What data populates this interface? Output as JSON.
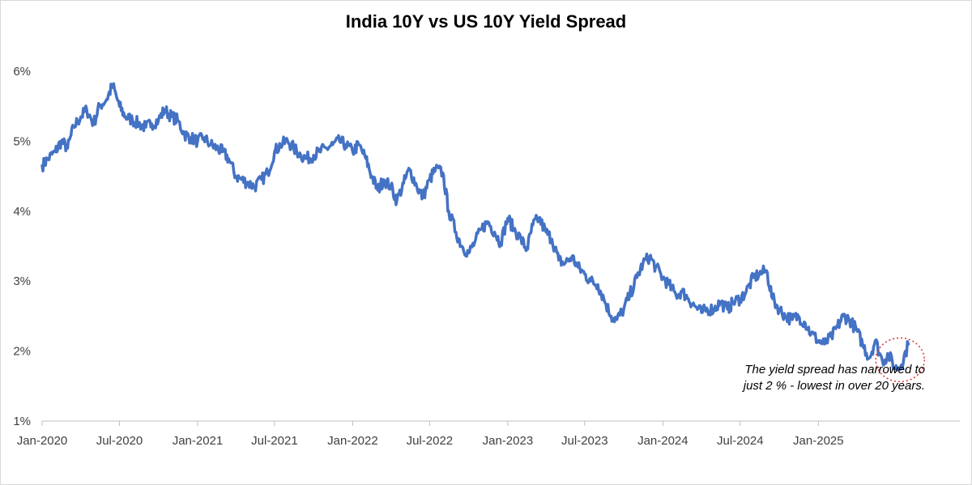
{
  "chart_data": {
    "type": "line",
    "title": "India 10Y vs US 10Y Yield Spread",
    "xlabel": "",
    "ylabel": "",
    "ylim": [
      1,
      6
    ],
    "xlim": [
      "2020-01-01",
      "2025-11-30"
    ],
    "y_ticks": [
      "1%",
      "2%",
      "3%",
      "4%",
      "5%",
      "6%"
    ],
    "x_ticks": [
      {
        "date": "2020-01-01",
        "label": "Jan-2020"
      },
      {
        "date": "2020-07-01",
        "label": "Jul-2020"
      },
      {
        "date": "2021-01-01",
        "label": "Jan-2021"
      },
      {
        "date": "2021-07-01",
        "label": "Jul-2021"
      },
      {
        "date": "2022-01-01",
        "label": "Jan-2022"
      },
      {
        "date": "2022-07-01",
        "label": "Jul-2022"
      },
      {
        "date": "2023-01-01",
        "label": "Jan-2023"
      },
      {
        "date": "2023-07-01",
        "label": "Jul-2023"
      },
      {
        "date": "2024-01-01",
        "label": "Jan-2024"
      },
      {
        "date": "2024-07-01",
        "label": "Jul-2024"
      },
      {
        "date": "2025-01-01",
        "label": "Jan-2025"
      }
    ],
    "grid": false,
    "legend": "none",
    "line_color": "#4472c4",
    "series": [
      {
        "x": [
          "2020-01-01",
          "2020-01-15",
          "2020-02-01",
          "2020-02-15",
          "2020-03-01",
          "2020-03-15",
          "2020-04-01",
          "2020-04-15",
          "2020-05-01",
          "2020-05-15",
          "2020-06-01",
          "2020-06-15",
          "2020-07-01",
          "2020-07-15",
          "2020-08-01",
          "2020-08-15",
          "2020-09-01",
          "2020-09-15",
          "2020-10-01",
          "2020-10-15",
          "2020-11-01",
          "2020-11-15",
          "2020-12-01",
          "2020-12-15",
          "2021-01-01",
          "2021-01-15",
          "2021-02-01",
          "2021-02-15",
          "2021-03-01",
          "2021-03-15",
          "2021-04-01",
          "2021-04-15",
          "2021-05-01",
          "2021-05-15",
          "2021-06-01",
          "2021-06-15",
          "2021-07-01",
          "2021-07-15",
          "2021-08-01",
          "2021-08-15",
          "2021-09-01",
          "2021-09-15",
          "2021-10-01",
          "2021-10-15",
          "2021-11-01",
          "2021-11-15",
          "2021-12-01",
          "2021-12-15",
          "2022-01-01",
          "2022-01-15",
          "2022-02-01",
          "2022-02-15",
          "2022-03-01",
          "2022-03-15",
          "2022-04-01",
          "2022-04-15",
          "2022-05-01",
          "2022-05-15",
          "2022-06-01",
          "2022-06-15",
          "2022-07-01",
          "2022-07-15",
          "2022-08-01",
          "2022-08-15",
          "2022-09-01",
          "2022-09-15",
          "2022-10-01",
          "2022-10-15",
          "2022-11-01",
          "2022-11-15",
          "2022-12-01",
          "2022-12-15",
          "2023-01-01",
          "2023-01-15",
          "2023-02-01",
          "2023-02-15",
          "2023-03-01",
          "2023-03-15",
          "2023-04-01",
          "2023-04-15",
          "2023-05-01",
          "2023-05-15",
          "2023-06-01",
          "2023-06-15",
          "2023-07-01",
          "2023-07-15",
          "2023-08-01",
          "2023-08-15",
          "2023-09-01",
          "2023-09-15",
          "2023-10-01",
          "2023-10-15",
          "2023-11-01",
          "2023-11-15",
          "2023-12-01",
          "2023-12-15",
          "2024-01-01",
          "2024-01-15",
          "2024-02-01",
          "2024-02-15",
          "2024-03-01",
          "2024-03-15",
          "2024-04-01",
          "2024-04-15",
          "2024-05-01",
          "2024-05-15",
          "2024-06-01",
          "2024-06-15",
          "2024-07-01",
          "2024-07-15",
          "2024-08-01",
          "2024-08-15",
          "2024-09-01",
          "2024-09-15",
          "2024-10-01",
          "2024-10-15",
          "2024-11-01",
          "2024-11-15",
          "2024-12-01",
          "2024-12-15",
          "2025-01-01",
          "2025-01-15",
          "2025-02-01",
          "2025-02-15",
          "2025-03-01",
          "2025-03-15",
          "2025-04-01",
          "2025-04-15",
          "2025-05-01",
          "2025-05-15",
          "2025-06-01",
          "2025-06-15",
          "2025-07-01",
          "2025-07-15",
          "2025-08-01"
        ],
        "values": [
          4.65,
          4.75,
          4.85,
          5.0,
          4.9,
          5.2,
          5.35,
          5.45,
          5.25,
          5.5,
          5.6,
          5.8,
          5.5,
          5.35,
          5.3,
          5.25,
          5.2,
          5.25,
          5.3,
          5.45,
          5.35,
          5.3,
          5.1,
          5.05,
          5.0,
          5.05,
          4.95,
          4.9,
          4.85,
          4.75,
          4.5,
          4.45,
          4.4,
          4.35,
          4.45,
          4.55,
          4.85,
          4.95,
          5.0,
          4.9,
          4.8,
          4.75,
          4.8,
          4.85,
          4.9,
          4.95,
          5.0,
          4.95,
          4.85,
          4.95,
          4.75,
          4.5,
          4.3,
          4.45,
          4.35,
          4.15,
          4.4,
          4.6,
          4.35,
          4.2,
          4.45,
          4.6,
          4.55,
          4.0,
          3.7,
          3.5,
          3.4,
          3.55,
          3.75,
          3.85,
          3.7,
          3.55,
          3.9,
          3.75,
          3.6,
          3.45,
          3.8,
          3.9,
          3.7,
          3.6,
          3.3,
          3.25,
          3.35,
          3.2,
          3.1,
          3.0,
          2.95,
          2.75,
          2.5,
          2.45,
          2.6,
          2.8,
          3.05,
          3.25,
          3.35,
          3.2,
          3.05,
          2.95,
          2.8,
          2.85,
          2.75,
          2.65,
          2.55,
          2.6,
          2.6,
          2.7,
          2.6,
          2.7,
          2.75,
          2.85,
          3.05,
          3.1,
          3.15,
          2.75,
          2.6,
          2.5,
          2.45,
          2.5,
          2.4,
          2.25,
          2.15,
          2.1,
          2.2,
          2.35,
          2.5,
          2.45,
          2.3,
          2.1,
          1.9,
          2.15,
          1.85,
          1.95,
          1.75,
          1.8,
          2.1
        ]
      }
    ],
    "annotation": {
      "lines": [
        "The yield spread has narrowed to",
        "just 2 % - lowest in over 20 years."
      ]
    },
    "highlight_color": "#e03030"
  }
}
